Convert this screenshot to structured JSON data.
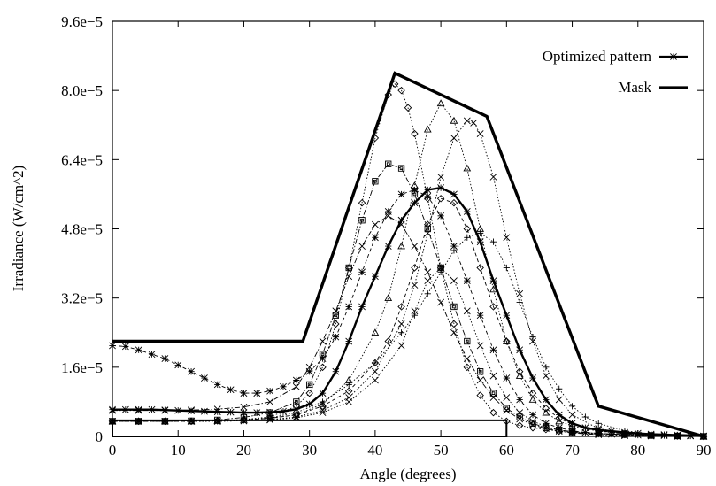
{
  "chart_data": {
    "type": "line",
    "title": "",
    "xlabel": "Angle (degrees)",
    "ylabel": "Irradiance (W/cm^2)",
    "xlim": [
      0,
      90
    ],
    "ylim": [
      0,
      9.6e-05
    ],
    "xticks": [
      0,
      10,
      20,
      30,
      40,
      50,
      60,
      70,
      80,
      90
    ],
    "xtick_labels": [
      "0",
      "10",
      "20",
      "30",
      "40",
      "50",
      "60",
      "70",
      "80",
      "90"
    ],
    "yticks": [
      0,
      1.6e-05,
      3.2e-05,
      4.8e-05,
      6.4e-05,
      8e-05,
      9.6e-05
    ],
    "ytick_labels": [
      "0",
      "1.6e−5",
      "3.2e−5",
      "4.8e−5",
      "6.4e−5",
      "8.0e−5",
      "9.6e−5"
    ],
    "grid": false,
    "legend_position": "top-right",
    "series": [
      {
        "name": "Optimized pattern",
        "marker": "star",
        "style": "thick",
        "x": [
          0,
          2,
          4,
          6,
          8,
          10,
          12,
          14,
          16,
          18,
          20,
          22,
          24,
          26,
          28,
          30,
          32,
          34,
          36,
          38,
          40,
          42,
          44,
          46,
          48,
          50,
          52,
          54,
          56,
          58,
          60,
          62,
          64,
          66,
          68,
          70,
          72,
          74,
          76,
          78,
          80,
          82,
          84,
          86,
          88,
          90
        ],
        "y": [
          6.2e-06,
          6.2e-06,
          6.2e-06,
          6.2e-06,
          6.1e-06,
          6e-06,
          5.9e-06,
          5.8e-06,
          5.7e-06,
          5.6e-06,
          5.5e-06,
          5.5e-06,
          5.6e-06,
          5.8e-06,
          6.3e-06,
          7.5e-06,
          1e-05,
          1.5e-05,
          2.2e-05,
          3e-05,
          3.7e-05,
          4.4e-05,
          5e-05,
          5.4e-05,
          5.7e-05,
          5.75e-05,
          5.6e-05,
          5.2e-05,
          4.5e-05,
          3.6e-05,
          2.8e-05,
          2e-05,
          1.35e-05,
          8.5e-06,
          5e-06,
          3e-06,
          2e-06,
          1.5e-06,
          1.2e-06,
          9e-07,
          7e-07,
          5e-07,
          4e-07,
          3e-07,
          2e-07,
          1e-07
        ]
      },
      {
        "name": "Mask",
        "style": "thick-solid",
        "x": [
          0,
          29,
          43,
          57,
          74,
          90
        ],
        "y": [
          2.2e-05,
          2.2e-05,
          8.4e-05,
          7.4e-05,
          7e-06,
          0
        ]
      },
      {
        "name": "",
        "shape": "rect",
        "style": "thin-solid",
        "x": [
          0,
          60,
          60,
          0,
          0
        ],
        "y": [
          3.7e-06,
          3.7e-06,
          0,
          0,
          3.7e-06
        ]
      },
      {
        "name": "",
        "marker": "star",
        "style": "dashed",
        "x": [
          0,
          2,
          4,
          6,
          8,
          10,
          12,
          14,
          16,
          18,
          20,
          22,
          24,
          26,
          28,
          30,
          32,
          34,
          36,
          38,
          40,
          42,
          44,
          46,
          48,
          50,
          52,
          54,
          56,
          58,
          60,
          62,
          64,
          66,
          68,
          70,
          72,
          74,
          76,
          78,
          80,
          82,
          84,
          86,
          88,
          90
        ],
        "y": [
          2.1e-05,
          2.08e-05,
          2e-05,
          1.9e-05,
          1.8e-05,
          1.65e-05,
          1.5e-05,
          1.35e-05,
          1.2e-05,
          1.08e-05,
          1e-05,
          1e-05,
          1.05e-05,
          1.15e-05,
          1.3e-05,
          1.5e-05,
          1.8e-05,
          2.3e-05,
          3e-05,
          3.8e-05,
          4.6e-05,
          5.2e-05,
          5.6e-05,
          5.7e-05,
          5.55e-05,
          5.1e-05,
          4.4e-05,
          3.6e-05,
          2.8e-05,
          2e-05,
          1.35e-05,
          8.5e-06,
          5e-06,
          3e-06,
          2e-06,
          1.3e-06,
          9e-07,
          7e-07,
          5e-07,
          4e-07,
          3e-07,
          2e-07,
          2e-07,
          1e-07,
          1e-07,
          0
        ]
      },
      {
        "name": "",
        "marker": "diamond",
        "style": "dotted",
        "x": [
          0,
          4,
          8,
          12,
          16,
          20,
          24,
          28,
          30,
          32,
          34,
          36,
          38,
          40,
          42,
          43,
          44,
          45,
          46,
          48,
          50,
          52,
          54,
          56,
          58,
          60,
          62,
          64,
          66,
          68,
          70,
          74,
          78,
          82,
          86,
          90
        ],
        "y": [
          3.5e-06,
          3.5e-06,
          3.5e-06,
          3.5e-06,
          3.6e-06,
          3.9e-06,
          4.5e-06,
          7e-06,
          1e-05,
          1.6e-05,
          2.6e-05,
          3.9e-05,
          5.4e-05,
          6.9e-05,
          7.9e-05,
          8.15e-05,
          8e-05,
          7.6e-05,
          7e-05,
          5.5e-05,
          3.9e-05,
          2.6e-05,
          1.6e-05,
          9.5e-06,
          5.5e-06,
          3.5e-06,
          2.5e-06,
          2e-06,
          1.6e-06,
          1.2e-06,
          9e-07,
          6e-07,
          4e-07,
          2e-07,
          1e-07,
          0
        ]
      },
      {
        "name": "",
        "marker": "square",
        "style": "dash-dot",
        "x": [
          0,
          4,
          8,
          12,
          16,
          20,
          24,
          28,
          30,
          32,
          34,
          36,
          38,
          40,
          42,
          44,
          46,
          48,
          50,
          52,
          54,
          56,
          58,
          60,
          62,
          64,
          66,
          68,
          70,
          74,
          78,
          82,
          86,
          90
        ],
        "y": [
          3.5e-06,
          3.5e-06,
          3.5e-06,
          3.6e-06,
          3.8e-06,
          4.4e-06,
          5.5e-06,
          8e-06,
          1.2e-05,
          1.9e-05,
          2.8e-05,
          3.9e-05,
          5e-05,
          5.9e-05,
          6.3e-05,
          6.2e-05,
          5.6e-05,
          4.8e-05,
          3.9e-05,
          3e-05,
          2.2e-05,
          1.5e-05,
          1e-05,
          6.5e-06,
          4.5e-06,
          3e-06,
          2e-06,
          1.5e-06,
          1.1e-06,
          7e-07,
          4e-07,
          2e-07,
          1e-07,
          0
        ]
      },
      {
        "name": "",
        "marker": "triangle",
        "style": "dotted",
        "x": [
          0,
          4,
          8,
          12,
          16,
          20,
          24,
          28,
          32,
          36,
          40,
          42,
          44,
          46,
          48,
          50,
          52,
          54,
          56,
          58,
          60,
          62,
          64,
          66,
          68,
          70,
          74,
          78,
          82,
          86,
          90
        ],
        "y": [
          3.5e-06,
          3.5e-06,
          3.5e-06,
          3.5e-06,
          3.6e-06,
          3.8e-06,
          4.2e-06,
          5e-06,
          7.5e-06,
          1.3e-05,
          2.4e-05,
          3.2e-05,
          4.4e-05,
          5.8e-05,
          7.1e-05,
          7.7e-05,
          7.3e-05,
          6.2e-05,
          4.8e-05,
          3.4e-05,
          2.2e-05,
          1.4e-05,
          8.5e-06,
          5.5e-06,
          3.5e-06,
          2.4e-06,
          1.2e-06,
          6e-07,
          3e-07,
          1e-07,
          0
        ]
      },
      {
        "name": "",
        "marker": "x",
        "style": "dotted",
        "x": [
          0,
          4,
          8,
          12,
          16,
          20,
          24,
          28,
          32,
          36,
          40,
          44,
          46,
          48,
          50,
          52,
          54,
          55,
          56,
          58,
          60,
          62,
          64,
          66,
          68,
          70,
          74,
          78,
          82,
          86,
          90
        ],
        "y": [
          3.5e-06,
          3.5e-06,
          3.5e-06,
          3.5e-06,
          3.5e-06,
          3.6e-06,
          3.9e-06,
          4.5e-06,
          6e-06,
          9e-06,
          1.5e-05,
          2.6e-05,
          3.5e-05,
          4.7e-05,
          6e-05,
          6.9e-05,
          7.3e-05,
          7.25e-05,
          7e-05,
          6e-05,
          4.6e-05,
          3.3e-05,
          2.2e-05,
          1.4e-05,
          8.5e-06,
          5e-06,
          1.8e-06,
          7e-07,
          3e-07,
          1e-07,
          0
        ]
      },
      {
        "name": "",
        "marker": "x",
        "style": "dash-dot",
        "x": [
          0,
          4,
          8,
          12,
          16,
          20,
          24,
          28,
          30,
          32,
          34,
          36,
          38,
          40,
          42,
          44,
          46,
          48,
          50,
          52,
          54,
          56,
          58,
          60,
          62,
          64,
          66,
          68,
          70,
          74,
          78,
          82,
          86,
          90
        ],
        "y": [
          6e-06,
          6e-06,
          6e-06,
          6.1e-06,
          6.3e-06,
          6.8e-06,
          8e-06,
          1.15e-05,
          1.6e-05,
          2.2e-05,
          2.9e-05,
          3.7e-05,
          4.4e-05,
          4.9e-05,
          5.1e-05,
          4.9e-05,
          4.4e-05,
          3.8e-05,
          3.1e-05,
          2.4e-05,
          1.8e-05,
          1.3e-05,
          9e-06,
          6e-06,
          4e-06,
          2.7e-06,
          1.8e-06,
          1.2e-06,
          8e-07,
          4e-07,
          2e-07,
          1e-07,
          0,
          0
        ]
      },
      {
        "name": "",
        "marker": "plus",
        "style": "dotted",
        "x": [
          0,
          4,
          8,
          12,
          16,
          20,
          24,
          28,
          32,
          36,
          40,
          44,
          46,
          48,
          50,
          52,
          54,
          56,
          58,
          60,
          62,
          64,
          66,
          68,
          70,
          72,
          74,
          78,
          82,
          86,
          90
        ],
        "y": [
          3.5e-06,
          3.5e-06,
          3.5e-06,
          3.5e-06,
          3.6e-06,
          3.8e-06,
          4.3e-06,
          5.5e-06,
          8e-06,
          1.2e-05,
          1.7e-05,
          2.4e-05,
          2.8e-05,
          3.3e-05,
          3.8e-05,
          4.3e-05,
          4.6e-05,
          4.7e-05,
          4.5e-05,
          3.9e-05,
          3.1e-05,
          2.3e-05,
          1.6e-05,
          1.1e-05,
          7e-06,
          4.5e-06,
          3e-06,
          1.3e-06,
          5e-07,
          2e-07,
          0
        ]
      },
      {
        "name": "",
        "marker": "diamond",
        "style": "dashed",
        "x": [
          0,
          4,
          8,
          12,
          16,
          20,
          24,
          28,
          32,
          36,
          40,
          42,
          44,
          46,
          48,
          50,
          52,
          54,
          56,
          58,
          60,
          62,
          64,
          66,
          68,
          70,
          74,
          78,
          82,
          86,
          90
        ],
        "y": [
          3.5e-06,
          3.5e-06,
          3.5e-06,
          3.5e-06,
          3.6e-06,
          3.8e-06,
          4.2e-06,
          5e-06,
          7e-06,
          1.05e-05,
          1.7e-05,
          2.2e-05,
          3e-05,
          3.9e-05,
          4.9e-05,
          5.5e-05,
          5.4e-05,
          4.8e-05,
          3.9e-05,
          3e-05,
          2.2e-05,
          1.5e-05,
          1e-05,
          6.5e-06,
          4.2e-06,
          2.8e-06,
          1.3e-06,
          6e-07,
          3e-07,
          1e-07,
          0
        ]
      },
      {
        "name": "",
        "marker": "x",
        "style": "dotted",
        "x": [
          0,
          4,
          8,
          12,
          16,
          20,
          24,
          28,
          32,
          36,
          40,
          44,
          46,
          48,
          50,
          52,
          54,
          56,
          58,
          60,
          62,
          64,
          66,
          68,
          70,
          74,
          78,
          82,
          86,
          90
        ],
        "y": [
          3.5e-06,
          3.5e-06,
          3.5e-06,
          3.5e-06,
          3.5e-06,
          3.6e-06,
          3.8e-06,
          4.3e-06,
          5.5e-06,
          8e-06,
          1.3e-05,
          2.1e-05,
          2.9e-05,
          3.6e-05,
          3.9e-05,
          3.6e-05,
          2.9e-05,
          2.1e-05,
          1.4e-05,
          9e-06,
          5.5e-06,
          3.5e-06,
          2.3e-06,
          1.5e-06,
          1e-06,
          5e-07,
          2e-07,
          1e-07,
          0,
          0
        ]
      }
    ]
  }
}
